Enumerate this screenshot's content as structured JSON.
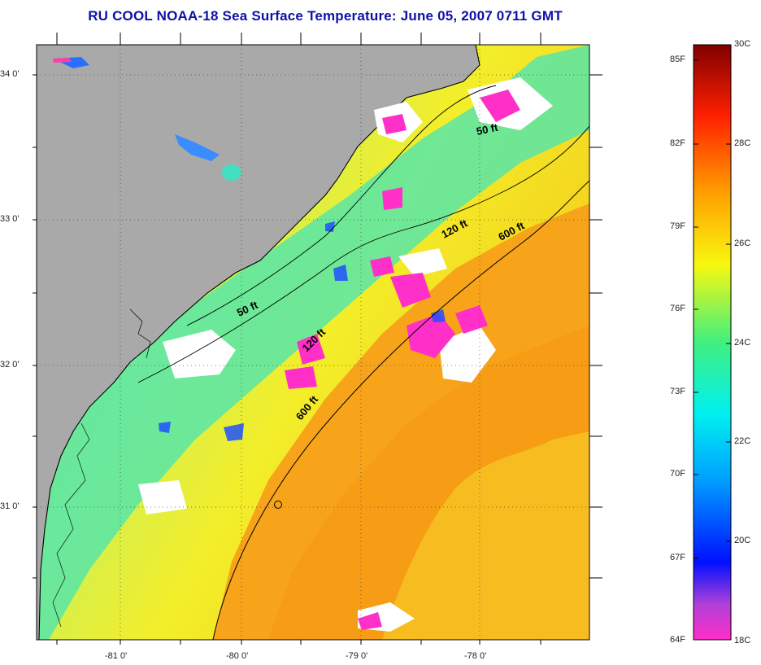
{
  "title": "RU COOL  NOAA-18  Sea Surface Temperature:  June 05, 2007 0711 GMT",
  "axes": {
    "lat_labels": [
      "34 0'",
      "33 0'",
      "32 0'",
      "31 0'"
    ],
    "lon_labels": [
      "-81 0'",
      "-80 0'",
      "-79 0'",
      "-78 0'"
    ]
  },
  "contours": {
    "labels": [
      "50 ft",
      "120 ft",
      "600 ft",
      "50 ft",
      "120 ft",
      "600 ft"
    ]
  },
  "colorbar": {
    "fahrenheit_labels": [
      "85F",
      "82F",
      "79F",
      "76F",
      "73F",
      "70F",
      "67F",
      "64F"
    ],
    "celsius_labels": [
      "30C",
      "28C",
      "26C",
      "24C",
      "22C",
      "20C",
      "18C"
    ],
    "range_c": [
      18,
      30
    ],
    "range_f": [
      64,
      86
    ]
  },
  "colors": {
    "land": "#a9a9a9",
    "title": "#1010a8",
    "cloud": "#ffffff",
    "cold": "#ff30c8",
    "warm": "#ff9a10"
  }
}
